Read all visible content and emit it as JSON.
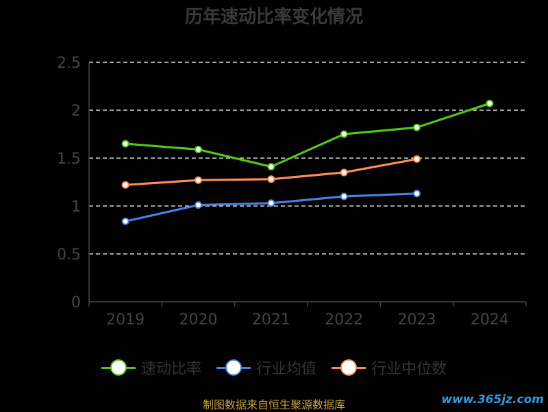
{
  "chart_data": {
    "type": "line",
    "title": "历年速动比率变化情况",
    "categories": [
      "2019",
      "2020",
      "2021",
      "2022",
      "2023",
      "2024"
    ],
    "ylim": [
      0,
      2.5
    ],
    "yticks": [
      "0",
      "0.5",
      "1",
      "1.5",
      "2",
      "2.5"
    ],
    "grid": true,
    "legend_position": "bottom",
    "series": [
      {
        "name": "速动比率",
        "color": "#52c41a",
        "values": [
          1.65,
          1.59,
          1.41,
          1.75,
          1.82,
          2.07
        ]
      },
      {
        "name": "行业均值",
        "color": "#4a7fe0",
        "values": [
          0.84,
          1.01,
          1.03,
          1.1,
          1.13,
          null
        ]
      },
      {
        "name": "行业中位数",
        "color": "#ff8c55",
        "values": [
          1.22,
          1.27,
          1.28,
          1.35,
          1.49,
          null
        ]
      }
    ]
  },
  "footer": {
    "source": "制图数据来自恒生聚源数据库",
    "watermark": "www.365jz.com"
  }
}
